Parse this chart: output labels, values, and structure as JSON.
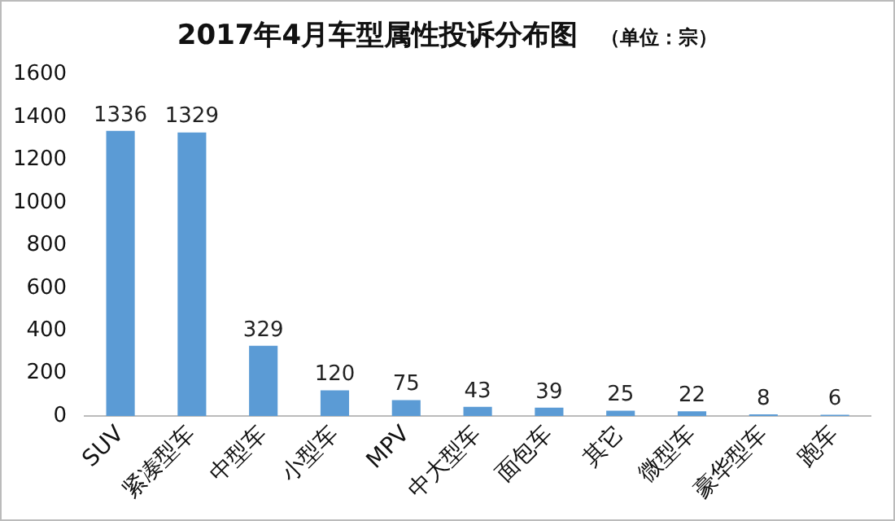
{
  "chart_data": {
    "type": "bar",
    "title": "2017年4月车型属性投诉分布图",
    "subtitle": "（单位：宗）",
    "categories": [
      "SUV",
      "紧凑型车",
      "中型车",
      "小型车",
      "MPV",
      "中大型车",
      "面包车",
      "其它",
      "微型车",
      "豪华型车",
      "跑车"
    ],
    "values": [
      1336,
      1329,
      329,
      120,
      75,
      43,
      39,
      25,
      22,
      8,
      6
    ],
    "color": "#5b9bd5",
    "ylim": [
      0,
      1600
    ],
    "yticks": [
      0,
      200,
      400,
      600,
      800,
      1000,
      1200,
      1400,
      1600
    ],
    "grid": false,
    "data_labels": true,
    "legend": false
  }
}
